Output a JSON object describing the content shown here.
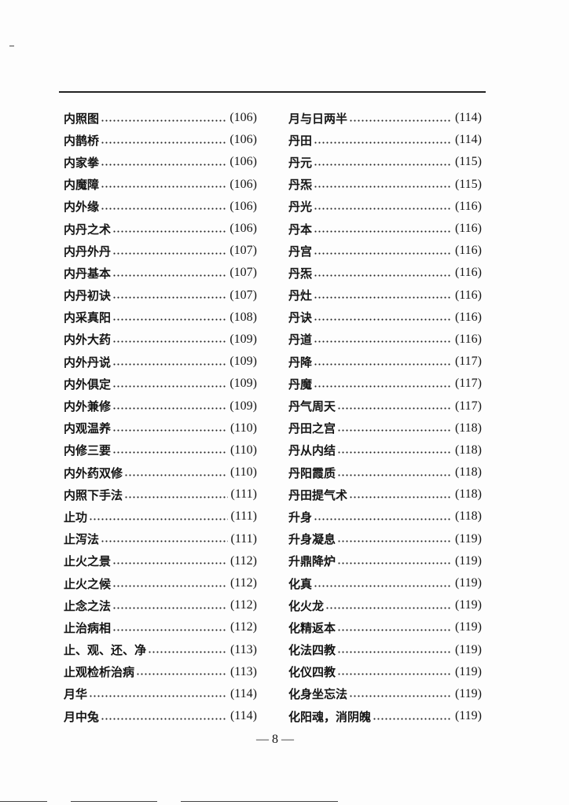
{
  "left_column": [
    {
      "term": "内照图",
      "page": "(106)"
    },
    {
      "term": "内鹊桥",
      "page": "(106)"
    },
    {
      "term": "内家拳",
      "page": "(106)"
    },
    {
      "term": "内魔障",
      "page": "(106)"
    },
    {
      "term": "内外缘",
      "page": "(106)"
    },
    {
      "term": "内丹之术",
      "page": "(106)"
    },
    {
      "term": "内丹外丹",
      "page": "(107)"
    },
    {
      "term": "内丹基本",
      "page": "(107)"
    },
    {
      "term": "内丹初诀",
      "page": "(107)"
    },
    {
      "term": "内采真阳",
      "page": "(108)"
    },
    {
      "term": "内外大药",
      "page": "(109)"
    },
    {
      "term": "内外丹说",
      "page": "(109)"
    },
    {
      "term": "内外俱定",
      "page": "(109)"
    },
    {
      "term": "内外兼修",
      "page": "(109)"
    },
    {
      "term": "内观温养",
      "page": "(110)"
    },
    {
      "term": "内修三要",
      "page": "(110)"
    },
    {
      "term": "内外药双修",
      "page": "(110)"
    },
    {
      "term": "内照下手法",
      "page": "(111)"
    },
    {
      "term": "止功",
      "page": "(111)"
    },
    {
      "term": "止泻法",
      "page": "(111)"
    },
    {
      "term": "止火之景",
      "page": "(112)"
    },
    {
      "term": "止火之候",
      "page": "(112)"
    },
    {
      "term": "止念之法",
      "page": "(112)"
    },
    {
      "term": "止治病相",
      "page": "(112)"
    },
    {
      "term": "止、观、还、净",
      "page": "(113)"
    },
    {
      "term": "止观检析治病",
      "page": "(113)"
    },
    {
      "term": "月华",
      "page": "(114)"
    },
    {
      "term": "月中兔",
      "page": "(114)"
    }
  ],
  "right_column": [
    {
      "term": "月与日两半",
      "page": "(114)"
    },
    {
      "term": "丹田",
      "page": "(114)"
    },
    {
      "term": "丹元",
      "page": "(115)"
    },
    {
      "term": "丹炁",
      "page": "(115)"
    },
    {
      "term": "丹光",
      "page": "(116)"
    },
    {
      "term": "丹本",
      "page": "(116)"
    },
    {
      "term": "丹宫",
      "page": "(116)"
    },
    {
      "term": "丹炁",
      "page": "(116)"
    },
    {
      "term": "丹灶",
      "page": "(116)"
    },
    {
      "term": "丹诀",
      "page": "(116)"
    },
    {
      "term": "丹道",
      "page": "(116)"
    },
    {
      "term": "丹降",
      "page": "(117)"
    },
    {
      "term": "丹魔",
      "page": "(117)"
    },
    {
      "term": "丹气周天",
      "page": "(117)"
    },
    {
      "term": "丹田之宫",
      "page": "(118)"
    },
    {
      "term": "丹从内结",
      "page": "(118)"
    },
    {
      "term": "丹阳霞质",
      "page": "(118)"
    },
    {
      "term": "丹田提气术",
      "page": "(118)"
    },
    {
      "term": "升身",
      "page": "(118)"
    },
    {
      "term": "升身凝息",
      "page": "(119)"
    },
    {
      "term": "升鼎降炉",
      "page": "(119)"
    },
    {
      "term": "化真",
      "page": "(119)"
    },
    {
      "term": "化火龙",
      "page": "(119)"
    },
    {
      "term": "化精返本",
      "page": "(119)"
    },
    {
      "term": "化法四教",
      "page": "(119)"
    },
    {
      "term": "化仪四教",
      "page": "(119)"
    },
    {
      "term": "化身坐忘法",
      "page": "(119)"
    },
    {
      "term": "化阳魂，消阴魄",
      "page": "(119)"
    }
  ],
  "page_number": "— 8 —"
}
